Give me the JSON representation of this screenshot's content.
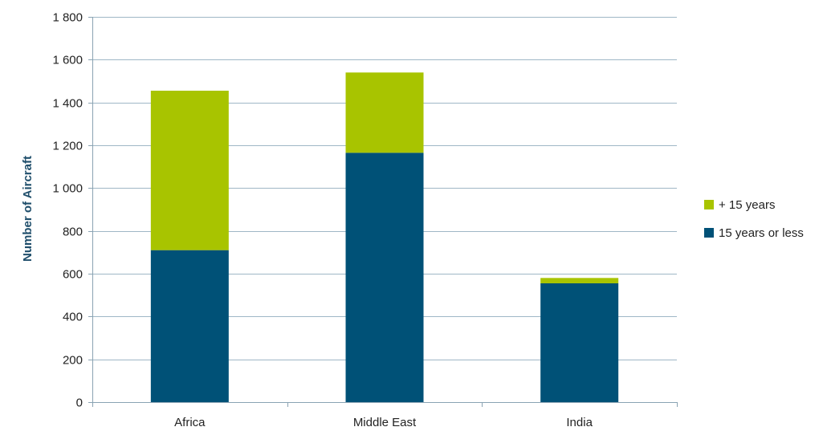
{
  "chart_data": {
    "type": "bar",
    "stacked": true,
    "categories": [
      "Africa",
      "Middle East",
      "India"
    ],
    "series": [
      {
        "name": "15 years or less",
        "values": [
          710,
          1165,
          555
        ],
        "color": "#005177"
      },
      {
        "name": "+ 15 years",
        "values": [
          745,
          375,
          25
        ],
        "color": "#a8c400"
      }
    ],
    "title": "",
    "xlabel": "",
    "ylabel": "Number of Aircraft",
    "ylim": [
      0,
      1800
    ],
    "yticks": [
      0,
      200,
      400,
      600,
      800,
      1000,
      1200,
      1400,
      1600,
      1800
    ],
    "ytick_labels": [
      "0",
      "200",
      "400",
      "600",
      "800",
      "1 000",
      "1 200",
      "1 400",
      "1 600",
      "1 800"
    ],
    "grid": true,
    "legend": {
      "position": "right",
      "entries": [
        "+ 15 years",
        "15 years or less"
      ]
    },
    "colors": {
      "gridline": "#9fb7c6",
      "axis": "#8aa3b3"
    }
  }
}
